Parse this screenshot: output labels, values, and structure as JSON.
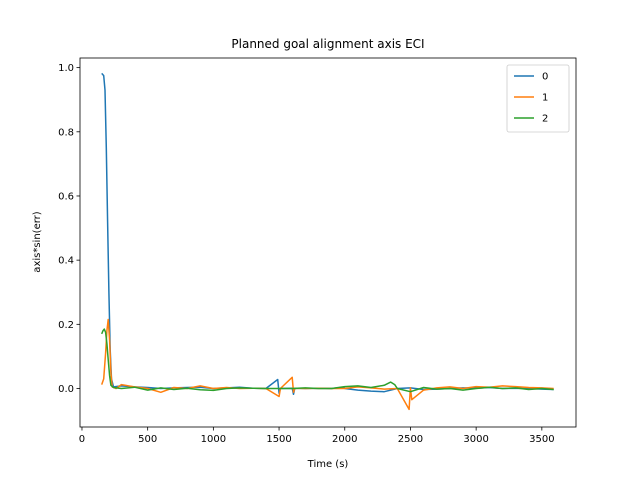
{
  "chart_data": {
    "type": "line",
    "title": "Planned goal alignment axis ECI",
    "xlabel": "Time (s)",
    "ylabel": "axis*sin(err)",
    "xlim": [
      -15,
      3760
    ],
    "ylim": [
      -0.12,
      1.03
    ],
    "xticks": [
      0,
      500,
      1000,
      1500,
      2000,
      2500,
      3000,
      3500
    ],
    "yticks": [
      0.0,
      0.2,
      0.4,
      0.6,
      0.8,
      1.0
    ],
    "xtick_labels": [
      "0",
      "500",
      "1000",
      "1500",
      "2000",
      "2500",
      "3000",
      "3500"
    ],
    "ytick_labels": [
      "0.0",
      "0.2",
      "0.4",
      "0.6",
      "0.8",
      "1.0"
    ],
    "grid": false,
    "legend_position": "top-right",
    "series": [
      {
        "name": "0",
        "color": "#1f77b4",
        "x": [
          150,
          165,
          175,
          185,
          195,
          205,
          215,
          225,
          240,
          300,
          400,
          500,
          600,
          700,
          800,
          900,
          1000,
          1100,
          1200,
          1300,
          1400,
          1490,
          1500,
          1510,
          1600,
          1610,
          1620,
          1700,
          1800,
          1900,
          1990,
          2000,
          2100,
          2200,
          2300,
          2400,
          2500,
          2600,
          2700,
          2800,
          2900,
          3000,
          3100,
          3200,
          3300,
          3400,
          3500,
          3590
        ],
        "y": [
          0.982,
          0.975,
          0.93,
          0.75,
          0.52,
          0.3,
          0.12,
          0.03,
          0.005,
          0.008,
          0.005,
          0.003,
          0.0,
          0.002,
          0.003,
          0.004,
          0.0,
          0.002,
          0.004,
          0.001,
          0.0,
          0.028,
          -0.015,
          0.0,
          0.001,
          -0.018,
          0.001,
          0.0,
          0.001,
          0.0,
          0.004,
          0.0,
          -0.005,
          -0.008,
          -0.01,
          0.0,
          0.002,
          -0.003,
          -0.002,
          0.0,
          0.002,
          0.001,
          0.003,
          0.0,
          0.001,
          0.0,
          -0.002,
          -0.003
        ]
      },
      {
        "name": "1",
        "color": "#ff7f0e",
        "x": [
          150,
          165,
          180,
          190,
          200,
          210,
          220,
          230,
          260,
          300,
          400,
          500,
          600,
          700,
          800,
          900,
          1000,
          1100,
          1200,
          1300,
          1400,
          1500,
          1510,
          1600,
          1610,
          1620,
          1700,
          1800,
          1900,
          2000,
          2100,
          2200,
          2300,
          2400,
          2490,
          2500,
          2510,
          2600,
          2700,
          2800,
          2900,
          3000,
          3100,
          3200,
          3300,
          3400,
          3500,
          3590
        ],
        "y": [
          0.012,
          0.03,
          0.11,
          0.18,
          0.215,
          0.15,
          0.05,
          0.005,
          0.0,
          0.012,
          0.005,
          0.0,
          -0.012,
          0.003,
          0.0,
          0.008,
          0.0,
          0.003,
          0.0,
          0.001,
          0.0,
          -0.025,
          0.0,
          0.035,
          -0.012,
          0.001,
          0.0,
          0.001,
          0.0,
          0.0,
          0.005,
          0.002,
          -0.002,
          0.0,
          -0.065,
          0.002,
          -0.035,
          -0.005,
          0.002,
          0.005,
          0.0,
          0.006,
          0.004,
          0.008,
          0.006,
          0.003,
          0.002,
          0.0
        ]
      },
      {
        "name": "2",
        "color": "#2ca02c",
        "x": [
          150,
          160,
          170,
          180,
          190,
          200,
          210,
          220,
          240,
          300,
          400,
          500,
          600,
          700,
          800,
          900,
          1000,
          1100,
          1200,
          1300,
          1400,
          1500,
          1600,
          1700,
          1800,
          1900,
          2000,
          2100,
          2200,
          2300,
          2350,
          2380,
          2400,
          2500,
          2600,
          2700,
          2800,
          2900,
          3000,
          3100,
          3200,
          3300,
          3400,
          3500,
          3590
        ],
        "y": [
          0.17,
          0.18,
          0.185,
          0.175,
          0.14,
          0.09,
          0.04,
          0.01,
          0.003,
          0.0,
          0.004,
          -0.005,
          0.002,
          -0.003,
          0.001,
          -0.004,
          -0.006,
          0.0,
          0.002,
          0.001,
          0.0,
          0.0,
          0.0,
          0.002,
          0.0,
          0.0,
          0.006,
          0.008,
          0.003,
          0.01,
          0.02,
          0.012,
          0.0,
          -0.01,
          0.003,
          -0.002,
          0.0,
          -0.005,
          0.0,
          0.004,
          0.0,
          0.002,
          -0.003,
          0.0,
          -0.003
        ]
      }
    ]
  }
}
